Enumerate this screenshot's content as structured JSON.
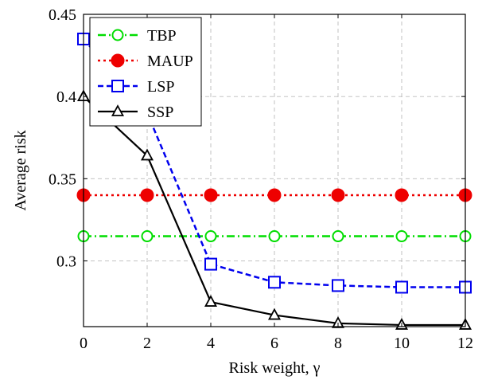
{
  "chart_data": {
    "type": "line",
    "title": "",
    "xlabel": "Risk weight, γ",
    "ylabel": "Average risk",
    "x": [
      0,
      2,
      4,
      6,
      8,
      10,
      12
    ],
    "xlim": [
      0,
      12
    ],
    "ylim": [
      0.26,
      0.45
    ],
    "x_ticks": [
      "0",
      "2",
      "4",
      "6",
      "8",
      "10",
      "12"
    ],
    "y_ticks": [
      "0.3",
      "0.35",
      "0.4",
      "0.45"
    ],
    "grid": true,
    "legend_position": "top-left",
    "series": [
      {
        "name": "TBP",
        "color": "#00dd00",
        "line": "dash-dot",
        "marker": "circle-open",
        "values": [
          0.315,
          0.315,
          0.315,
          0.315,
          0.315,
          0.315,
          0.315
        ]
      },
      {
        "name": "MAUP",
        "color": "#ee0000",
        "line": "dotted",
        "marker": "circle-filled",
        "values": [
          0.34,
          0.34,
          0.34,
          0.34,
          0.34,
          0.34,
          0.34
        ]
      },
      {
        "name": "LSP",
        "color": "#0000ee",
        "line": "dashed",
        "marker": "square-open",
        "values": [
          0.435,
          0.39,
          0.298,
          0.287,
          0.285,
          0.284,
          0.284
        ]
      },
      {
        "name": "SSP",
        "color": "#000000",
        "line": "solid",
        "marker": "triangle-open",
        "values": [
          0.4,
          0.364,
          0.275,
          0.267,
          0.262,
          0.261,
          0.261
        ]
      }
    ]
  }
}
